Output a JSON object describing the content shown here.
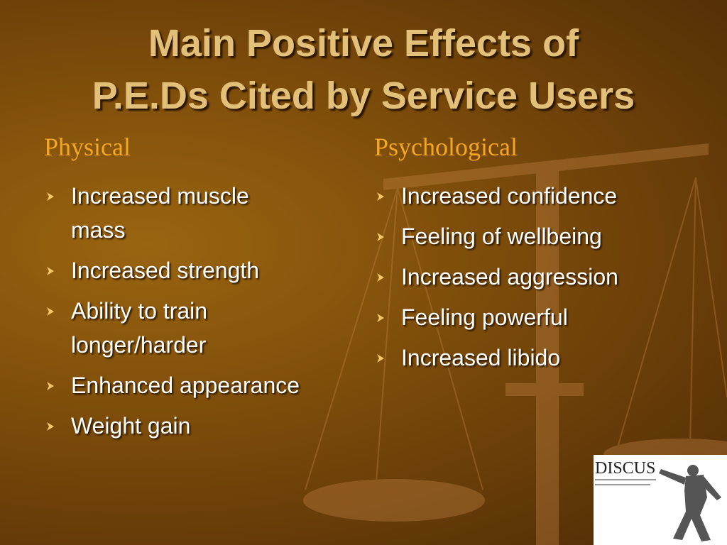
{
  "slide": {
    "title": [
      "Main Positive Effects of",
      "P.E.Ds Cited by Service Users"
    ],
    "columns": [
      {
        "heading": "Physical",
        "items": [
          [
            "Increased muscle",
            "mass"
          ],
          [
            "Increased strength"
          ],
          [
            "Ability to train",
            "longer/harder"
          ],
          [
            "Enhanced appearance"
          ],
          [
            "Weight gain"
          ]
        ]
      },
      {
        "heading": "Psychological",
        "items": [
          [
            "Increased confidence"
          ],
          [
            "Feeling of wellbeing"
          ],
          [
            "Increased aggression"
          ],
          [
            "Feeling powerful"
          ],
          [
            "Increased libido"
          ]
        ]
      }
    ],
    "logo": "DISCUS"
  }
}
